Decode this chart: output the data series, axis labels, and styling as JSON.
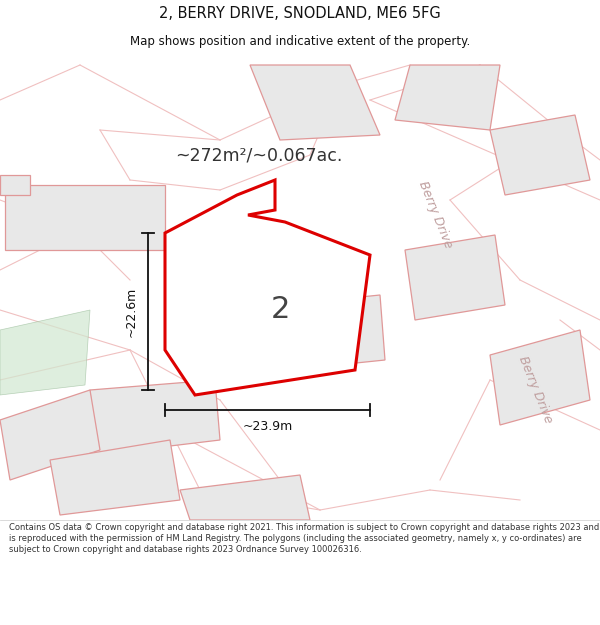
{
  "title_line1": "2, BERRY DRIVE, SNODLAND, ME6 5FG",
  "title_line2": "Map shows position and indicative extent of the property.",
  "area_label": "~272m²/~0.067ac.",
  "plot_number": "2",
  "dim_width": "~23.9m",
  "dim_height": "~22.6m",
  "road_label1": "Berry Drive",
  "road_label2": "Berry Drive",
  "footer_text": "Contains OS data © Crown copyright and database right 2021. This information is subject to Crown copyright and database rights 2023 and is reproduced with the permission of HM Land Registry. The polygons (including the associated geometry, namely x, y co-ordinates) are subject to Crown copyright and database rights 2023 Ordnance Survey 100026316.",
  "bg_color": "#ffffff",
  "map_bg": "#ffffff",
  "highlight_plot_color": "#ffffff",
  "highlight_plot_edge": "#cc0000",
  "building_fill": "#e8e8e8",
  "building_edge": "#e09090",
  "road_line_color": "#e8aaaa",
  "dim_line_color": "#111111",
  "text_color": "#111111",
  "area_text_color": "#333333",
  "road_text_color": "#bbaaaa",
  "green_fill": "#d8e8d8"
}
